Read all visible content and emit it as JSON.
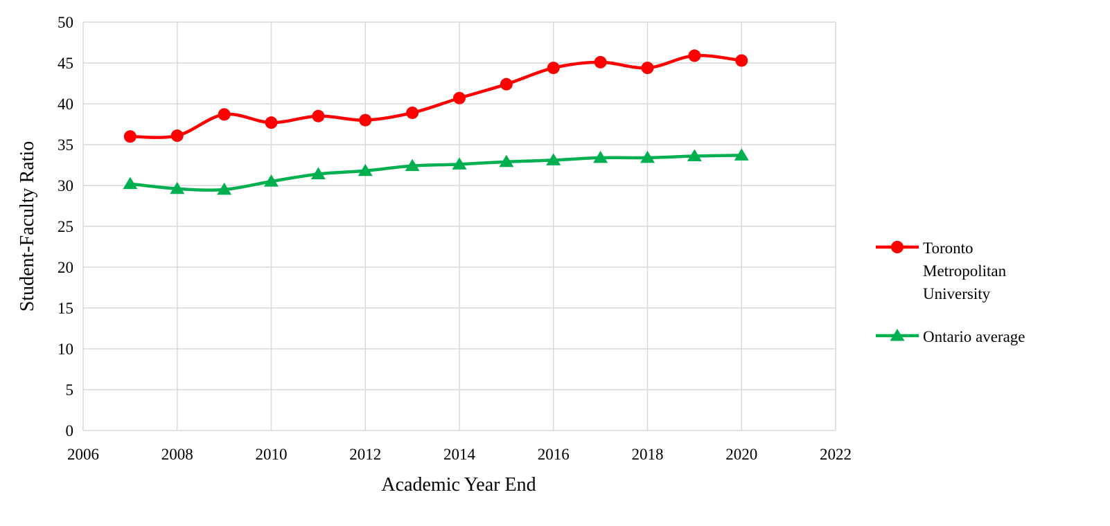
{
  "chart_data": {
    "type": "line",
    "title": "",
    "xlabel": "Academic Year End",
    "ylabel": "Student-Faculty Ratio",
    "xlim": [
      2006,
      2022
    ],
    "ylim": [
      0,
      50
    ],
    "x_ticks": [
      2006,
      2008,
      2010,
      2012,
      2014,
      2016,
      2018,
      2020,
      2022
    ],
    "y_ticks": [
      0,
      5,
      10,
      15,
      20,
      25,
      30,
      35,
      40,
      45,
      50
    ],
    "grid": true,
    "legend_position": "right",
    "x": [
      2007,
      2008,
      2009,
      2010,
      2011,
      2012,
      2013,
      2014,
      2015,
      2016,
      2017,
      2018,
      2019,
      2020
    ],
    "series": [
      {
        "name": "Toronto Metropolitan University",
        "legend_lines": [
          "Toronto",
          "Metropolitan",
          "University"
        ],
        "color": "#ff0000",
        "marker": "circle",
        "values": [
          36.0,
          36.1,
          38.7,
          37.7,
          38.5,
          38.0,
          38.9,
          40.7,
          42.4,
          44.4,
          45.1,
          44.4,
          45.9,
          45.3
        ]
      },
      {
        "name": "Ontario average",
        "legend_lines": [
          "Ontario average"
        ],
        "color": "#00b050",
        "marker": "triangle",
        "values": [
          30.2,
          29.6,
          29.5,
          30.5,
          31.4,
          31.8,
          32.4,
          32.6,
          32.9,
          33.1,
          33.4,
          33.4,
          33.6,
          33.7
        ]
      }
    ]
  }
}
